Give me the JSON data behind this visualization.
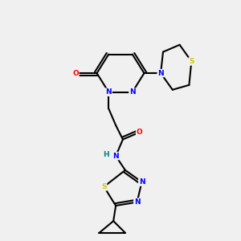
{
  "bg_color": "#f0f0f0",
  "bond_color": "#000000",
  "atom_colors": {
    "N": "#0000ff",
    "O": "#ff0000",
    "S": "#cccc00",
    "H": "#008080",
    "C": "#000000"
  }
}
